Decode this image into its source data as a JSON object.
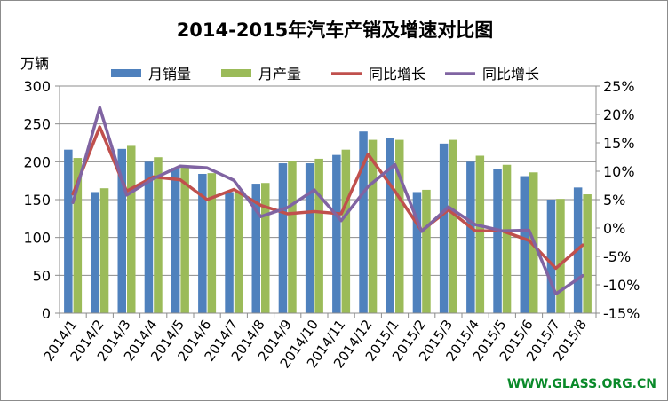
{
  "chart_data": {
    "type": "bar+line",
    "title": "2014-2015年汽车产销及增速对比图",
    "y_left_unit": "万辆",
    "categories": [
      "2014/1",
      "2014/2",
      "2014/3",
      "2014/4",
      "2014/5",
      "2014/6",
      "2014/7",
      "2014/8",
      "2014/9",
      "2014/10",
      "2014/11",
      "2014/12",
      "2015/1",
      "2015/2",
      "2015/3",
      "2015/4",
      "2015/5",
      "2015/6",
      "2015/7",
      "2015/8"
    ],
    "y_left_ticks": [
      "0",
      "50",
      "100",
      "150",
      "200",
      "250",
      "300"
    ],
    "y_left_range": [
      0,
      300
    ],
    "y_right_ticks": [
      "-15%",
      "-10%",
      "-5%",
      "0%",
      "5%",
      "10%",
      "15%",
      "20%",
      "25%"
    ],
    "y_right_range": [
      -15,
      25
    ],
    "grid": true,
    "legend_position": "top",
    "series": [
      {
        "name": "月销量",
        "kind": "bar",
        "axis": "left",
        "color": "#4f81bd",
        "values": [
          216,
          160,
          217,
          200,
          192,
          184,
          160,
          171,
          198,
          198,
          209,
          240,
          232,
          160,
          224,
          200,
          190,
          181,
          150,
          166
        ]
      },
      {
        "name": "月产量",
        "kind": "bar",
        "axis": "left",
        "color": "#9bbb59",
        "values": [
          205,
          165,
          221,
          206,
          195,
          185,
          160,
          172,
          201,
          204,
          216,
          229,
          229,
          163,
          229,
          208,
          196,
          186,
          151,
          157
        ]
      },
      {
        "name": "同比增长",
        "kind": "line",
        "axis": "right",
        "color": "#c0504d",
        "values": [
          6,
          17.8,
          6.5,
          9,
          8.5,
          5,
          6.8,
          4,
          2.5,
          2.9,
          2.5,
          13,
          6.5,
          -0.5,
          3.2,
          -0.5,
          -0.5,
          -2.2,
          -7.1,
          -3
        ]
      },
      {
        "name": "同比增长",
        "kind": "line",
        "axis": "right",
        "color": "#8064a2",
        "values": [
          4.5,
          21.2,
          5.8,
          8.7,
          10.9,
          10.6,
          8.4,
          2,
          3.6,
          6.7,
          1.3,
          7.3,
          11.2,
          -0.6,
          3.7,
          0.6,
          -0.5,
          -0.4,
          -11.6,
          -8.4
        ]
      }
    ]
  },
  "watermark": "WWW.GLASS.ORG.CN"
}
